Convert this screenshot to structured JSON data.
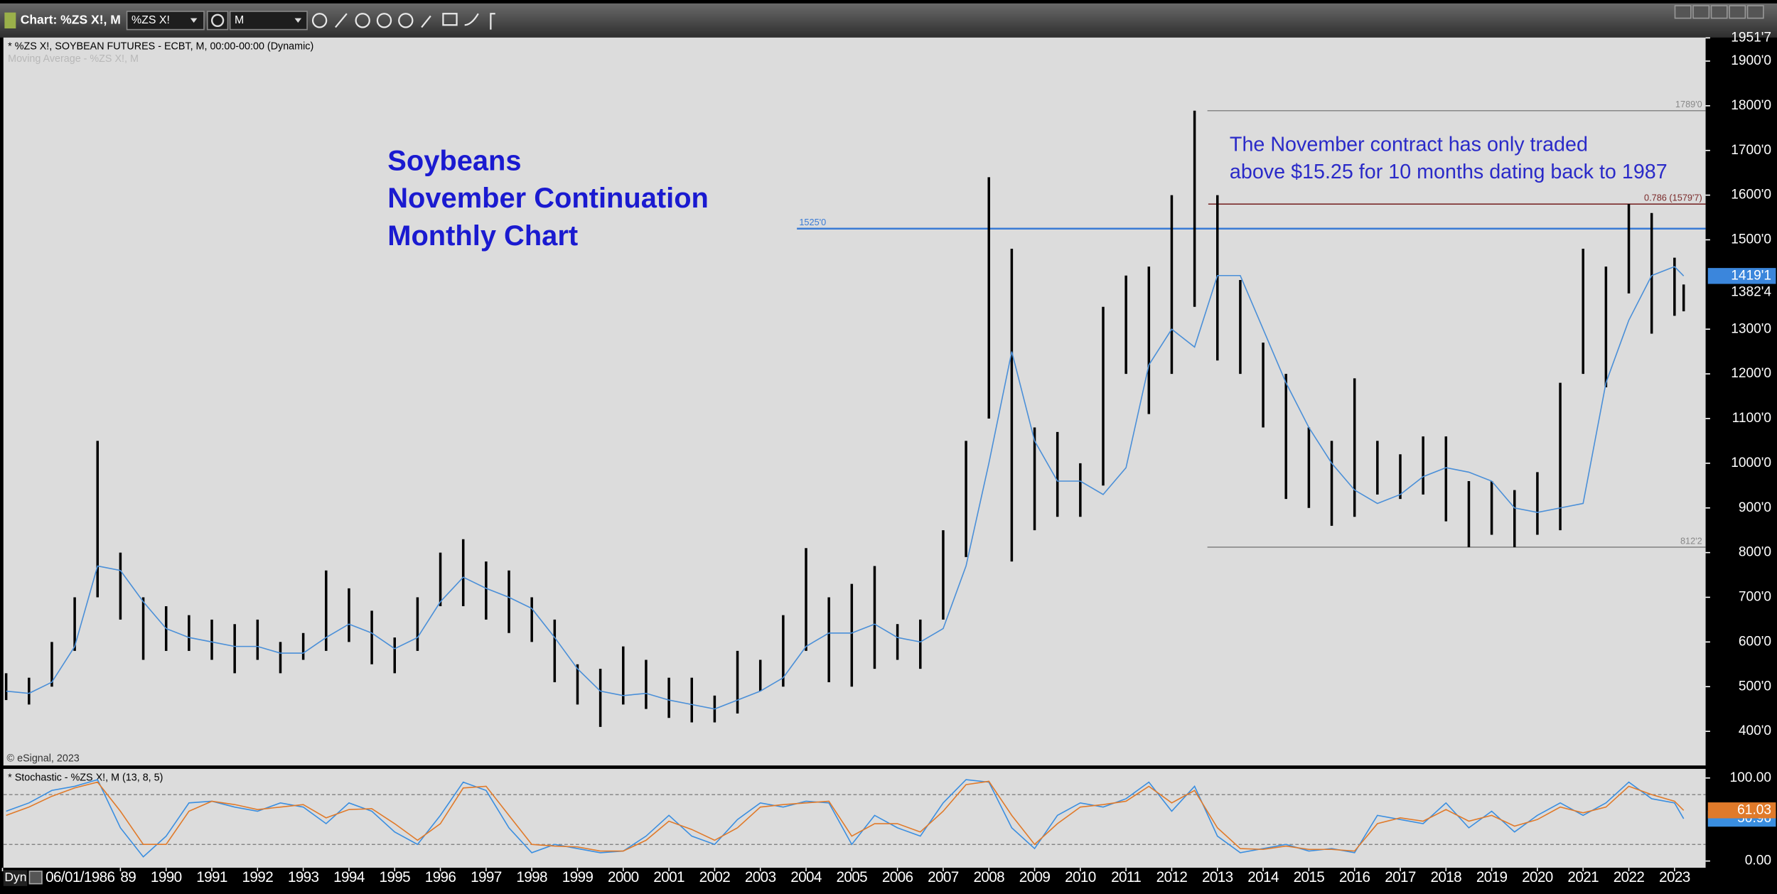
{
  "toolbar": {
    "window_title": "Chart: %ZS X!, M",
    "symbol": "%ZS X!",
    "interval": "M"
  },
  "chart_data": [
    {
      "type": "range",
      "title": "* %ZS X!, SOYBEAN FUTURES - ECBT, M, 00:00-00:00 (Dynamic)",
      "source": "© eSignal, 2023",
      "heading_lines": [
        "Soybeans",
        "November Continuation",
        "Monthly Chart"
      ],
      "note_lines": [
        "The November contract has only traded",
        "above $15.25 for 10 months dating back to 1987"
      ],
      "x": [
        1986.5,
        1987,
        1987.5,
        1988,
        1988.5,
        1989,
        1989.5,
        1990,
        1990.5,
        1991,
        1991.5,
        1992,
        1992.5,
        1993,
        1993.5,
        1994,
        1994.5,
        1995,
        1995.5,
        1996,
        1996.5,
        1997,
        1997.5,
        1998,
        1998.5,
        1999,
        1999.5,
        2000,
        2000.5,
        2001,
        2001.5,
        2002,
        2002.5,
        2003,
        2003.5,
        2004,
        2004.5,
        2005,
        2005.5,
        2006,
        2006.5,
        2007,
        2007.5,
        2008,
        2008.5,
        2009,
        2009.5,
        2010,
        2010.5,
        2011,
        2011.5,
        2012,
        2012.5,
        2013,
        2013.5,
        2014,
        2014.5,
        2015,
        2015.5,
        2016,
        2016.5,
        2017,
        2017.5,
        2018,
        2018.5,
        2019,
        2019.5,
        2020,
        2020.5,
        2021,
        2021.5,
        2022,
        2022.5,
        2023,
        2023.2
      ],
      "series": [
        {
          "color": "#000000",
          "high": [
            530,
            520,
            600,
            700,
            1050,
            800,
            700,
            680,
            660,
            650,
            640,
            650,
            600,
            620,
            760,
            720,
            670,
            610,
            700,
            800,
            830,
            780,
            760,
            700,
            650,
            550,
            540,
            590,
            560,
            520,
            520,
            480,
            580,
            560,
            660,
            810,
            700,
            730,
            770,
            640,
            650,
            850,
            1050,
            1640,
            1480,
            1080,
            1070,
            1000,
            1350,
            1420,
            1440,
            1600,
            1789,
            1600,
            1410,
            1270,
            1200,
            1080,
            1050,
            1190,
            1050,
            1020,
            1060,
            1060,
            960,
            960,
            940,
            980,
            1180,
            1480,
            1440,
            1580,
            1560,
            1460,
            1400
          ],
          "low": [
            470,
            460,
            500,
            580,
            700,
            650,
            560,
            580,
            580,
            560,
            530,
            560,
            530,
            560,
            580,
            600,
            550,
            530,
            580,
            680,
            680,
            650,
            620,
            600,
            510,
            460,
            410,
            460,
            450,
            430,
            420,
            420,
            440,
            490,
            500,
            580,
            510,
            500,
            540,
            560,
            540,
            650,
            790,
            1100,
            780,
            850,
            880,
            880,
            950,
            1200,
            1110,
            1200,
            1350,
            1230,
            1200,
            1080,
            920,
            900,
            860,
            880,
            930,
            920,
            930,
            870,
            812,
            840,
            812,
            840,
            850,
            1200,
            1170,
            1380,
            1290,
            1330,
            1340
          ]
        },
        {
          "name": "Moving Average - %ZS X!, M",
          "color": "#4a8fd8",
          "values": [
            490,
            485,
            510,
            590,
            770,
            760,
            690,
            630,
            610,
            600,
            590,
            590,
            575,
            575,
            610,
            640,
            620,
            585,
            610,
            690,
            745,
            720,
            700,
            675,
            610,
            540,
            490,
            480,
            485,
            470,
            460,
            450,
            470,
            490,
            520,
            590,
            620,
            620,
            640,
            610,
            600,
            630,
            770,
            1000,
            1250,
            1050,
            960,
            960,
            930,
            990,
            1220,
            1300,
            1260,
            1420,
            1420,
            1300,
            1180,
            1080,
            1000,
            940,
            910,
            930,
            970,
            990,
            980,
            960,
            900,
            890,
            900,
            910,
            1180,
            1320,
            1420,
            1440,
            1419.125
          ]
        }
      ],
      "xlim": [
        1986.44,
        2023.68
      ],
      "ylim": [
        323.6,
        1952.7
      ],
      "xticks": [
        {
          "value": 1986.42,
          "label": "06/01/1986"
        },
        {
          "value": 1989,
          "label": "89"
        },
        1990,
        1991,
        1992,
        1993,
        1994,
        1995,
        1996,
        1997,
        1998,
        1999,
        2000,
        2001,
        2002,
        2003,
        2004,
        2005,
        2006,
        2007,
        2008,
        2009,
        2010,
        2011,
        2012,
        2013,
        2014,
        2015,
        2016,
        2017,
        2018,
        2019,
        2020,
        2021,
        2022,
        2023
      ],
      "yticks": [
        {
          "value": 1951.875,
          "label": "1951'7"
        },
        {
          "value": 1900,
          "label": "1900'0"
        },
        {
          "value": 1800,
          "label": "1800'0"
        },
        {
          "value": 1700,
          "label": "1700'0"
        },
        {
          "value": 1600,
          "label": "1600'0"
        },
        {
          "value": 1500,
          "label": "1500'0"
        },
        {
          "value": 1300,
          "label": "1300'0"
        },
        {
          "value": 1200,
          "label": "1200'0"
        },
        {
          "value": 1100,
          "label": "1100'0"
        },
        {
          "value": 1000,
          "label": "1000'0"
        },
        {
          "value": 900,
          "label": "900'0"
        },
        {
          "value": 800,
          "label": "800'0"
        },
        {
          "value": 700,
          "label": "700'0"
        },
        {
          "value": 600,
          "label": "600'0"
        },
        {
          "value": 500,
          "label": "500'0"
        },
        {
          "value": 400,
          "label": "400'0"
        }
      ],
      "levels": [
        {
          "value": 1789,
          "label": "1789'0",
          "x0": 2012.78,
          "color": "#888888"
        },
        {
          "value": 1579.875,
          "label": "0.786 (1579'7)",
          "x0": 2012.8,
          "color": "#7a2a2a"
        },
        {
          "value": 1525,
          "label": "1525'0",
          "x0": 2003.8,
          "color": "#3a7bd5"
        },
        {
          "value": 812.25,
          "label": "812'2",
          "x0": 2012.78,
          "color": "#888888"
        }
      ],
      "tags": [
        {
          "value": 1419.125,
          "label": "1419'1",
          "color": "#3b86dc"
        },
        {
          "value": 1382.5,
          "label": "1382'4",
          "color": "#000000"
        }
      ]
    },
    {
      "type": "line",
      "title": "* Stochastic - %ZS X!, M (13, 8, 5)",
      "x": [
        1986.5,
        1987,
        1987.5,
        1988,
        1988.5,
        1989,
        1989.5,
        1990,
        1990.5,
        1991,
        1991.5,
        1992,
        1992.5,
        1993,
        1993.5,
        1994,
        1994.5,
        1995,
        1995.5,
        1996,
        1996.5,
        1997,
        1997.5,
        1998,
        1998.5,
        1999,
        1999.5,
        2000,
        2000.5,
        2001,
        2001.5,
        2002,
        2002.5,
        2003,
        2003.5,
        2004,
        2004.5,
        2005,
        2005.5,
        2006,
        2006.5,
        2007,
        2007.5,
        2008,
        2008.5,
        2009,
        2009.5,
        2010,
        2010.5,
        2011,
        2011.5,
        2012,
        2012.5,
        2013,
        2013.5,
        2014,
        2014.5,
        2015,
        2015.5,
        2016,
        2016.5,
        2017,
        2017.5,
        2018,
        2018.5,
        2019,
        2019.5,
        2020,
        2020.5,
        2021,
        2021.5,
        2022,
        2022.5,
        2023,
        2023.2
      ],
      "series": [
        {
          "color": "#3a8ee0",
          "values": [
            60,
            70,
            85,
            90,
            98,
            40,
            5,
            30,
            70,
            72,
            65,
            60,
            70,
            65,
            45,
            70,
            60,
            35,
            20,
            55,
            95,
            85,
            40,
            10,
            20,
            15,
            10,
            12,
            30,
            55,
            30,
            20,
            50,
            70,
            65,
            72,
            70,
            20,
            55,
            40,
            30,
            70,
            98,
            95,
            40,
            15,
            55,
            70,
            65,
            75,
            95,
            60,
            90,
            30,
            10,
            15,
            20,
            12,
            15,
            10,
            55,
            50,
            45,
            70,
            40,
            60,
            35,
            55,
            70,
            55,
            70,
            95,
            75,
            70,
            50.96
          ]
        },
        {
          "color": "#e07a2a",
          "values": [
            55,
            65,
            78,
            88,
            95,
            60,
            20,
            20,
            60,
            72,
            68,
            62,
            65,
            68,
            52,
            62,
            63,
            45,
            25,
            45,
            88,
            90,
            55,
            20,
            18,
            17,
            12,
            12,
            25,
            48,
            38,
            25,
            40,
            65,
            68,
            70,
            72,
            30,
            45,
            45,
            35,
            60,
            92,
            96,
            55,
            20,
            45,
            65,
            68,
            72,
            90,
            70,
            85,
            40,
            15,
            14,
            18,
            14,
            14,
            12,
            45,
            52,
            48,
            62,
            48,
            55,
            42,
            50,
            65,
            58,
            65,
            90,
            80,
            72,
            61.03
          ]
        }
      ],
      "xlim": [
        1986.44,
        2023.68
      ],
      "ylim": [
        -8.2,
        110.96
      ],
      "yticks": [
        {
          "value": 100,
          "label": "100.00"
        },
        {
          "value": 0,
          "label": "0.00"
        }
      ],
      "hlines": [
        80,
        20
      ]
    }
  ],
  "footer": {
    "mode": "Dyn"
  }
}
